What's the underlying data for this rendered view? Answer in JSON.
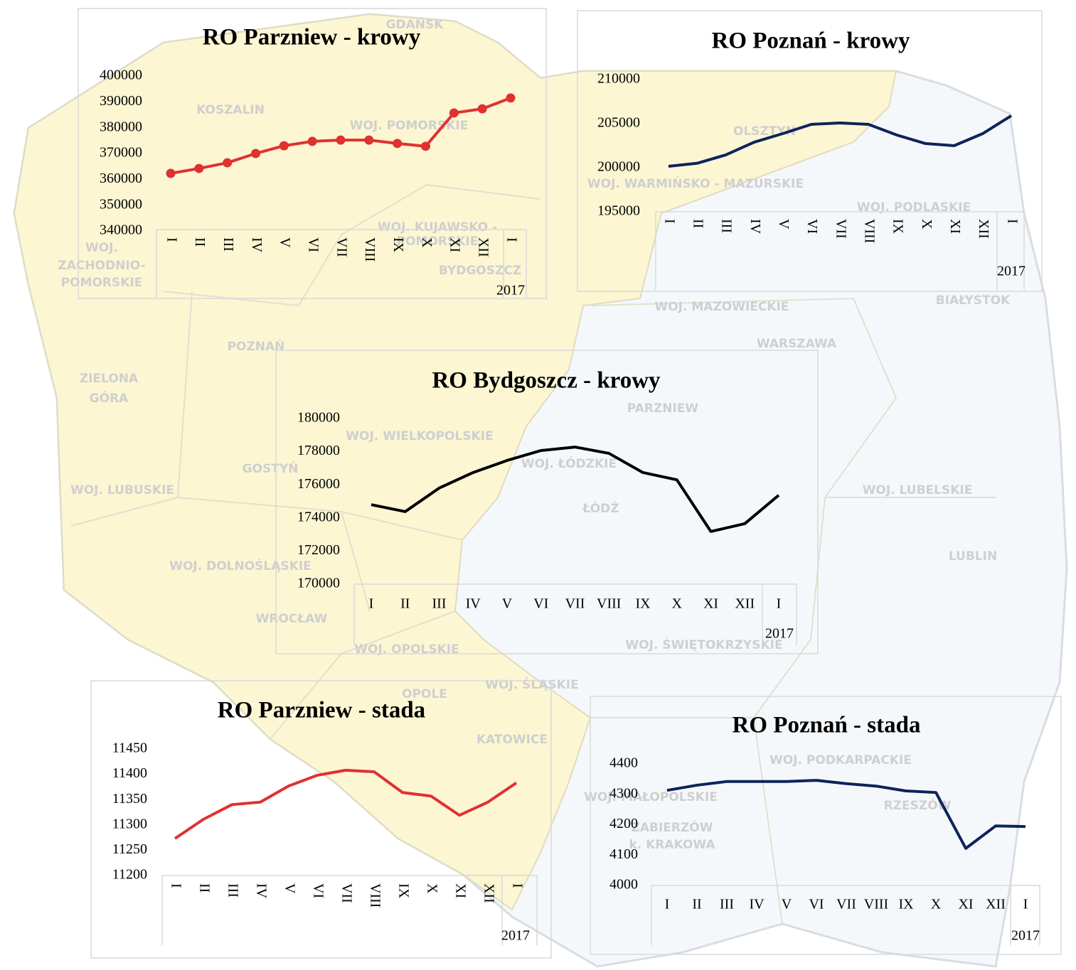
{
  "map": {
    "labels": [
      "GDAŃSK",
      "KOSZALIN",
      "WOJ. POMORSKIE",
      "OLSZTYN",
      "WOJ. WARMIŃSKO - MAZURSKIE",
      "WOJ. PODLASKIE",
      "BIAŁYSTOK",
      "WOJ.",
      "ZACHODNIO-",
      "POMORSKIE",
      "WOJ. KUJAWSKO -",
      "POMORSKIE",
      "BYDGOSZCZ",
      "POZNAŃ",
      "WOJ. MAZOWIECKIE",
      "WARSZAWA",
      "PARZNIEW",
      "ZIELONA",
      "GÓRA",
      "WOJ. WIELKOPOLSKIE",
      "GOSTYŃ",
      "WOJ. LUBUSKIE",
      "WOJ. ŁÓDZKIE",
      "ŁÓDŹ",
      "WOJ. LUBELSKIE",
      "LUBLIN",
      "WOJ. DOLNOŚLĄSKIE",
      "WROCŁAW",
      "WOJ. OPOLSKIE",
      "WOJ. ŚWIĘTOKRZYSKIE",
      "OPOLE",
      "WOJ. ŚLĄSKIE",
      "KATOWICE",
      "WOJ. PODKARPACKIE",
      "WOJ. MAŁOPOLSKIE",
      "RZESZÓW",
      "ZABIERZÓW",
      "k. KRAKOWA"
    ]
  },
  "chart_data": [
    {
      "type": "line",
      "title": "RO Parzniew - krowy",
      "categories": [
        "I",
        "II",
        "III",
        "IV",
        "V",
        "VI",
        "VII",
        "VIII",
        "IX",
        "X",
        "XI",
        "XII",
        "I"
      ],
      "year": "2017",
      "values": [
        362300,
        364200,
        366400,
        370000,
        373000,
        374700,
        375200,
        375200,
        373900,
        372800,
        385700,
        387300,
        391500
      ],
      "color": "#e03131",
      "markers": true,
      "ylim": [
        340000,
        400000
      ],
      "yticks": [
        340000,
        350000,
        360000,
        370000,
        380000,
        390000,
        400000
      ]
    },
    {
      "type": "line",
      "title": "RO Poznań - krowy",
      "categories": [
        "I",
        "II",
        "III",
        "IV",
        "V",
        "VI",
        "VII",
        "VIII",
        "IX",
        "X",
        "XI",
        "XII",
        "I"
      ],
      "year": "2017",
      "values": [
        200160,
        200500,
        201450,
        202900,
        203870,
        204920,
        205080,
        204920,
        203700,
        202740,
        202500,
        203870,
        205900
      ],
      "color": "#0d2459",
      "markers": false,
      "ylim": [
        195000,
        210000
      ],
      "yticks": [
        195000,
        200000,
        205000,
        210000
      ]
    },
    {
      "type": "line",
      "title": "RO Bydgoszcz - krowy",
      "categories": [
        "I",
        "II",
        "III",
        "IV",
        "V",
        "VI",
        "VII",
        "VIII",
        "IX",
        "X",
        "XI",
        "XII",
        "I"
      ],
      "year": "2017",
      "values": [
        174800,
        174380,
        175800,
        176740,
        177470,
        178070,
        178280,
        177900,
        176740,
        176300,
        173180,
        173650,
        175370
      ],
      "color": "#000000",
      "markers": false,
      "ylim": [
        170000,
        180000
      ],
      "yticks": [
        170000,
        172000,
        174000,
        176000,
        178000,
        180000
      ]
    },
    {
      "type": "line",
      "title": "RO Parzniew - stada",
      "categories": [
        "I",
        "II",
        "III",
        "IV",
        "V",
        "VI",
        "VII",
        "VIII",
        "IX",
        "X",
        "XI",
        "XII",
        "I"
      ],
      "year": "2017",
      "values": [
        11273,
        11311,
        11340,
        11345,
        11377,
        11398,
        11408,
        11405,
        11364,
        11357,
        11319,
        11345,
        11383
      ],
      "color": "#e03131",
      "markers": false,
      "ylim": [
        11200,
        11450
      ],
      "yticks": [
        11200,
        11250,
        11300,
        11350,
        11400,
        11450
      ]
    },
    {
      "type": "line",
      "title": "RO Poznań - stada",
      "categories": [
        "I",
        "II",
        "III",
        "IV",
        "V",
        "VI",
        "VII",
        "VIII",
        "IX",
        "X",
        "XI",
        "XII",
        "I"
      ],
      "year": "2017",
      "values": [
        4313,
        4330,
        4342,
        4342,
        4342,
        4346,
        4335,
        4327,
        4311,
        4306,
        4122,
        4196,
        4194
      ],
      "color": "#0d2459",
      "markers": false,
      "ylim": [
        4000,
        4400
      ],
      "yticks": [
        4000,
        4100,
        4200,
        4300,
        4400
      ]
    }
  ]
}
